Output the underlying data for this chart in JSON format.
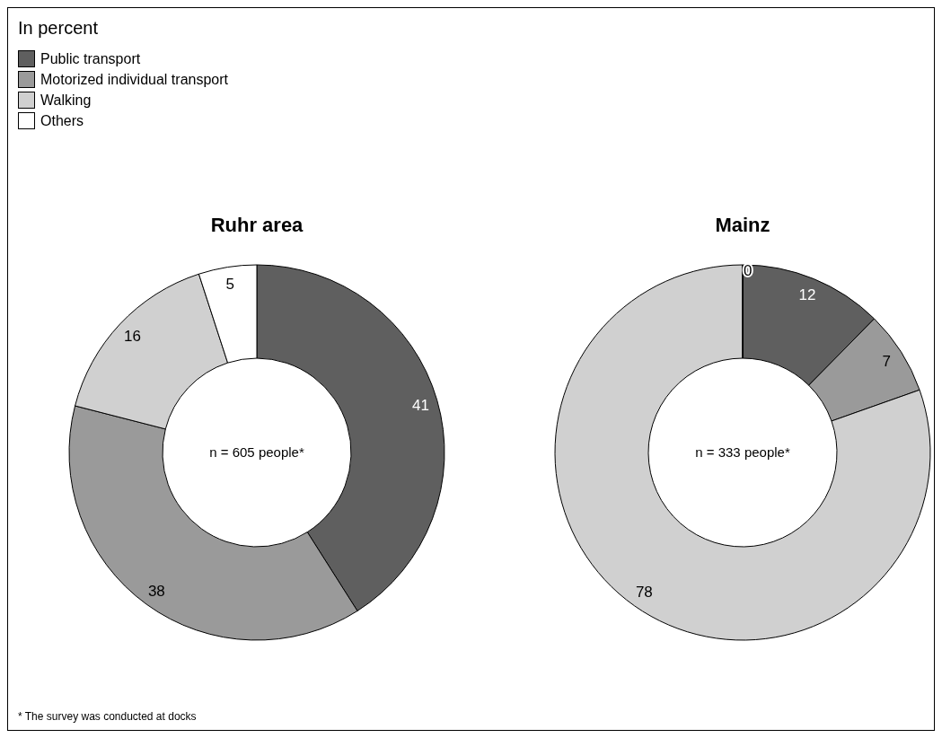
{
  "chart_data": [
    {
      "type": "donut",
      "title": "Ruhr area",
      "legend_title": "In percent",
      "legend": "top left",
      "data_labels": true,
      "categories": [
        "Public transport",
        "Motorized individual transport",
        "Walking",
        "Others"
      ],
      "colors": [
        "#5f5f5f",
        "#9a9a9a",
        "#d0d0d0",
        "#ffffff"
      ],
      "values": [
        41,
        38,
        16,
        5
      ],
      "annotations": [
        "n = 605 people*",
        "* The survey was conducted at docks"
      ]
    },
    {
      "type": "donut",
      "title": "Mainz",
      "categories": [
        null,
        null,
        null,
        null
      ],
      "colors": [
        "#5f5f5f",
        "#9a9a9a",
        "#d0d0d0",
        "#ffffff"
      ],
      "values": [
        12,
        7,
        78,
        0
      ],
      "value_labels": [
        "12",
        "7",
        "78",
        "0"
      ],
      "annotations": [
        "n = 333 people*"
      ]
    }
  ]
}
